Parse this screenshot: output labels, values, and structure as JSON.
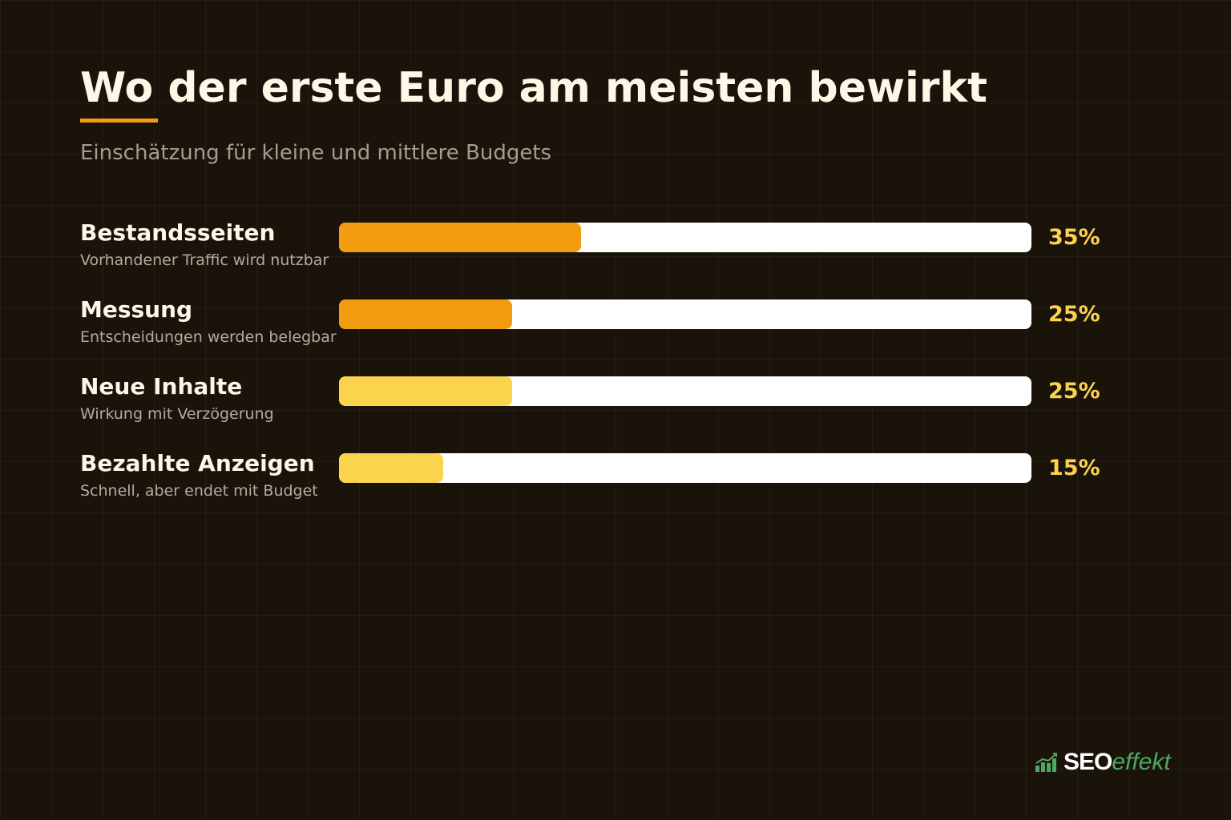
{
  "title": "Wo der erste Euro am meisten bewirkt",
  "subtitle": "Einschätzung für kleine und mittlere Budgets",
  "colors": {
    "background": "#1a130a",
    "accent": "#f39c12",
    "highlight": "#fcd14e",
    "track": "#ffffff",
    "logo_green": "#4ea862"
  },
  "chart_data": {
    "type": "bar",
    "orientation": "horizontal",
    "xlim": [
      0,
      100
    ],
    "unit": "%",
    "grid": false,
    "rows": [
      {
        "label": "Bestandsseiten",
        "description": "Vorhandener Traffic wird nutzbar",
        "value": 35,
        "value_label": "35%",
        "color": "#f39c12"
      },
      {
        "label": "Messung",
        "description": "Entscheidungen werden belegbar",
        "value": 25,
        "value_label": "25%",
        "color": "#f39c12"
      },
      {
        "label": "Neue Inhalte",
        "description": "Wirkung mit Verzögerung",
        "value": 25,
        "value_label": "25%",
        "color": "#fcd34d"
      },
      {
        "label": "Bezahlte Anzeigen",
        "description": "Schnell, aber endet mit Budget",
        "value": 15,
        "value_label": "15%",
        "color": "#fcd34d"
      }
    ]
  },
  "logo": {
    "icon": "bar-chart-icon",
    "seo": "SEO",
    "effekt": "effekt"
  }
}
